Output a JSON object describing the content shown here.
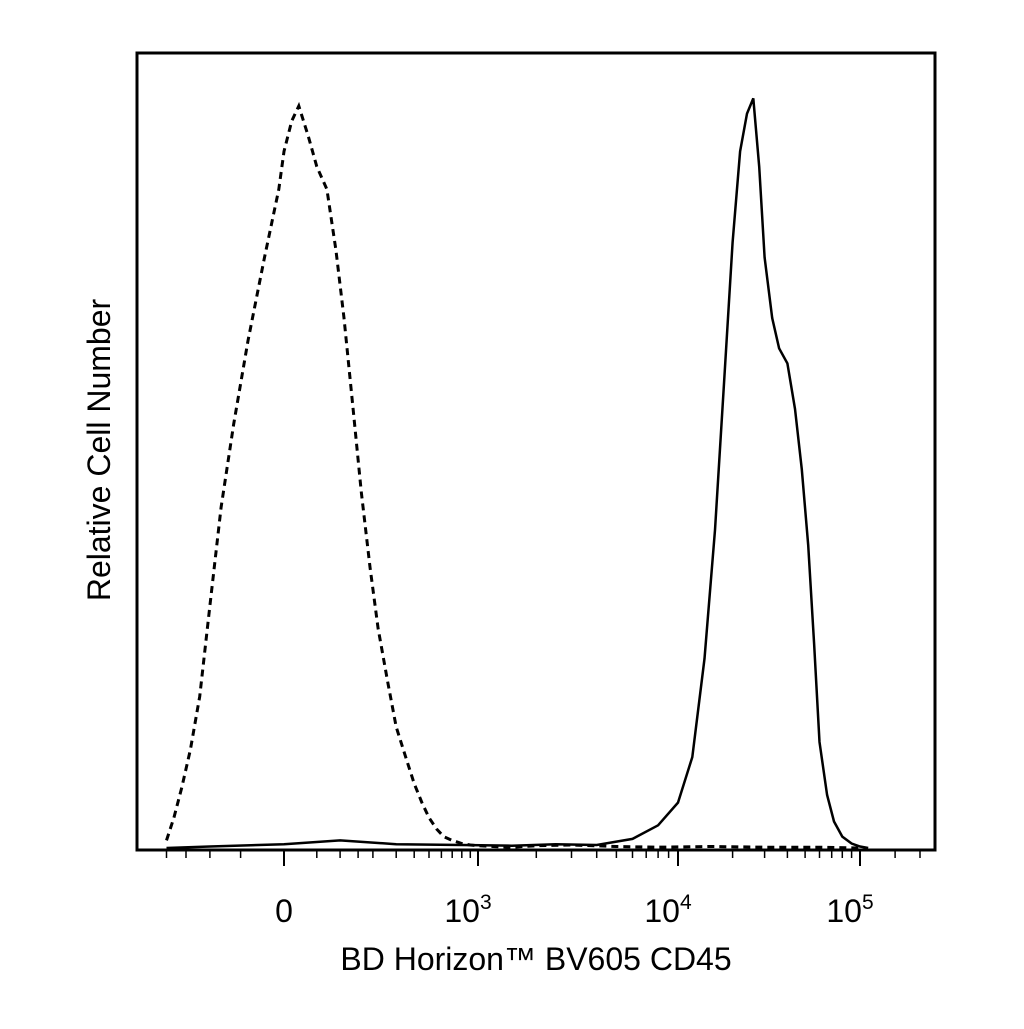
{
  "chart_data": {
    "type": "line",
    "xlabel": "BD Horizon™ BV605 CD45",
    "ylabel": "Relative Cell Number",
    "x_scale": "biexponential",
    "xlim": [
      -250,
      200000
    ],
    "ylim": [
      0,
      1.05
    ],
    "grid": false,
    "legend": "none",
    "x_ticks": [
      {
        "value": 0,
        "base": "0",
        "exp": ""
      },
      {
        "value": 1000,
        "base": "10",
        "exp": "3"
      },
      {
        "value": 10000,
        "base": "10",
        "exp": "4"
      },
      {
        "value": 100000,
        "base": "10",
        "exp": "5"
      }
    ],
    "series": [
      {
        "style": "dashed",
        "x": [
          -200,
          -180,
          -160,
          -140,
          -120,
          -100,
          -80,
          -60,
          -40,
          -20,
          -5,
          0,
          10,
          20,
          35,
          50,
          70,
          90,
          110,
          135,
          160,
          190,
          220,
          260,
          300,
          350,
          400,
          450,
          500,
          560,
          620,
          700,
          800,
          900,
          1000,
          1200,
          1500,
          2000,
          3000,
          5000,
          8000,
          15000,
          30000,
          60000,
          100000
        ],
        "y": [
          0.01,
          0.04,
          0.08,
          0.13,
          0.2,
          0.32,
          0.45,
          0.56,
          0.67,
          0.78,
          0.87,
          0.92,
          0.96,
          0.98,
          0.94,
          0.9,
          0.87,
          0.79,
          0.7,
          0.58,
          0.47,
          0.37,
          0.29,
          0.22,
          0.16,
          0.12,
          0.085,
          0.06,
          0.04,
          0.025,
          0.015,
          0.01,
          0.006,
          0.004,
          0.003,
          0.002,
          0.001,
          0.003,
          0.004,
          0.002,
          0.001,
          0.002,
          0.001,
          0.001,
          0.0
        ]
      },
      {
        "style": "solid",
        "x": [
          -200,
          -100,
          0,
          100,
          300,
          800,
          1500,
          2500,
          4000,
          6000,
          8000,
          10000,
          12000,
          14000,
          16000,
          18000,
          20000,
          22000,
          24000,
          26000,
          28000,
          30000,
          33000,
          36000,
          40000,
          44000,
          48000,
          52000,
          56000,
          60000,
          66000,
          72000,
          80000,
          90000,
          100000,
          110000
        ],
        "y": [
          0.0,
          0.002,
          0.005,
          0.01,
          0.005,
          0.004,
          0.003,
          0.005,
          0.004,
          0.012,
          0.03,
          0.06,
          0.12,
          0.25,
          0.42,
          0.62,
          0.8,
          0.92,
          0.97,
          0.99,
          0.9,
          0.78,
          0.7,
          0.66,
          0.64,
          0.58,
          0.5,
          0.4,
          0.27,
          0.14,
          0.07,
          0.035,
          0.015,
          0.006,
          0.002,
          0.0
        ]
      }
    ]
  }
}
